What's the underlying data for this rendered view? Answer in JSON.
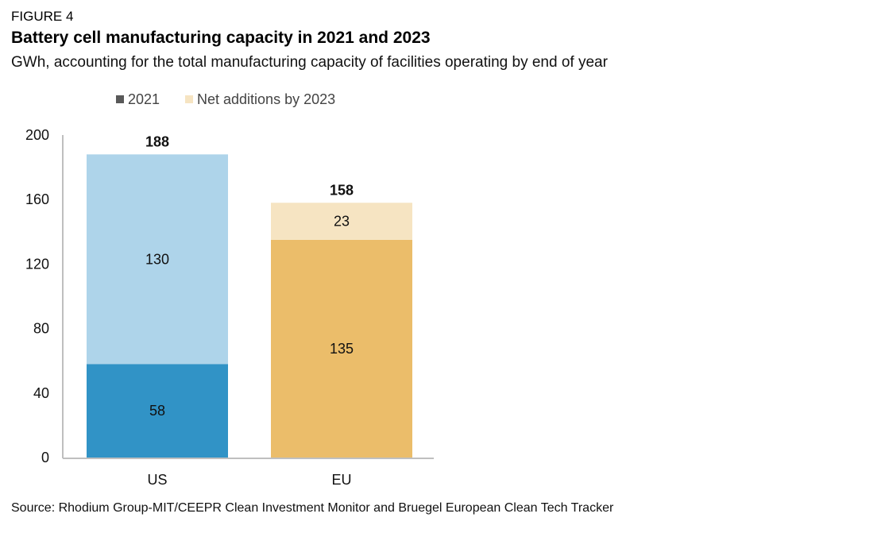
{
  "figure_label": "FIGURE 4",
  "title": "Battery cell manufacturing capacity in 2021 and 2023",
  "subtitle": "GWh, accounting for the total manufacturing capacity of facilities operating by end of year",
  "source": "Source: Rhodium Group-MIT/CEEPR Clean Investment Monitor and Bruegel European Clean Tech Tracker",
  "chart_data": {
    "type": "bar",
    "stacked": true,
    "categories": [
      "US",
      "EU"
    ],
    "series": [
      {
        "name": "2021",
        "values": [
          58,
          135
        ],
        "colors": [
          "#3193c6",
          "#ebbd6a"
        ],
        "legend_color": "#595959"
      },
      {
        "name": "Net additions by 2023",
        "values": [
          130,
          23
        ],
        "colors": [
          "#aed4ea",
          "#f6e4c2"
        ],
        "legend_color": "#f6e4c2"
      }
    ],
    "totals": [
      "188",
      "158"
    ],
    "yticks": [
      "0",
      "40",
      "80",
      "120",
      "160",
      "200"
    ],
    "ylim": [
      0,
      200
    ],
    "legend_position": "top",
    "grid": false
  }
}
